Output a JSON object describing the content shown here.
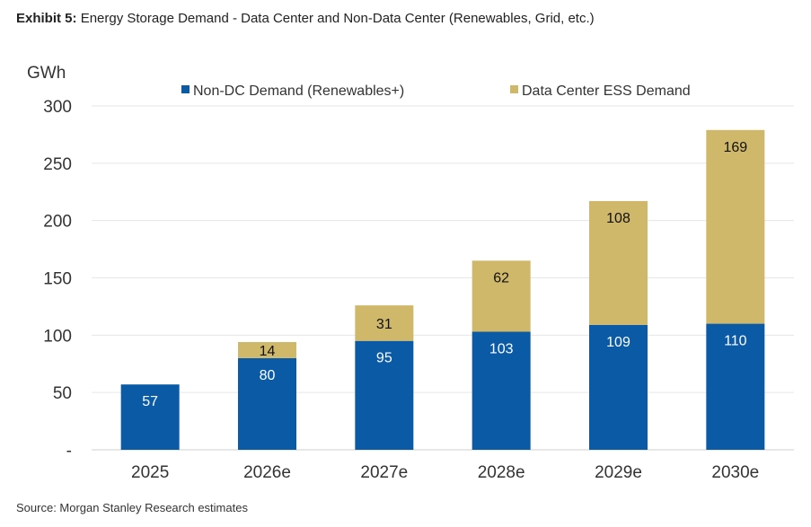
{
  "header": {
    "prefix": "Exhibit 5:",
    "title": "Energy Storage Demand - Data Center and Non-Data Center (Renewables, Grid, etc.)"
  },
  "footer": {
    "source": "Source: Morgan Stanley Research estimates"
  },
  "chart_data": {
    "type": "bar",
    "stacked": true,
    "title": "Energy Storage Demand - Data Center and Non-Data Center (Renewables, Grid, etc.)",
    "ylabel": "GWh",
    "xlabel": "",
    "ylim": [
      0,
      300
    ],
    "yticks": [
      0,
      50,
      100,
      150,
      200,
      250,
      300
    ],
    "ytick_labels": [
      "-",
      "50",
      "100",
      "150",
      "200",
      "250",
      "300"
    ],
    "grid": true,
    "legend_position": "top",
    "categories": [
      "2025",
      "2026e",
      "2027e",
      "2028e",
      "2029e",
      "2030e"
    ],
    "series": [
      {
        "name": "Non-DC Demand (Renewables+)",
        "color": "#0b5aa6",
        "label_color": "#ffffff",
        "values": [
          57,
          80,
          95,
          103,
          109,
          110
        ]
      },
      {
        "name": "Data Center ESS Demand",
        "color": "#cfb86a",
        "label_color": "#111111",
        "values": [
          null,
          14,
          31,
          62,
          108,
          169
        ]
      }
    ]
  }
}
